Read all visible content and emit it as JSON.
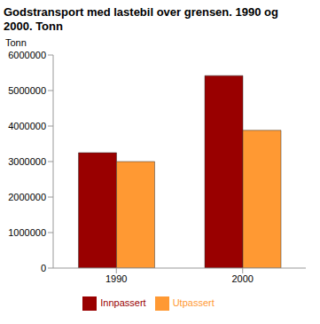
{
  "chart_data": {
    "type": "bar",
    "title": "Godstransport med lastebil over grensen. 1990 og 2000. Tonn",
    "y_label": "Tonn",
    "categories": [
      "1990",
      "2000"
    ],
    "series": [
      {
        "name": "Innpassert",
        "color": "#990000",
        "values": [
          3250000,
          5420000
        ]
      },
      {
        "name": "Utpassert",
        "color": "#ff9933",
        "values": [
          3000000,
          3880000
        ]
      }
    ],
    "ylim": [
      0,
      6000000
    ],
    "yticks": [
      0,
      1000000,
      2000000,
      3000000,
      4000000,
      5000000,
      6000000
    ],
    "grid": false,
    "legend": "bottom"
  }
}
